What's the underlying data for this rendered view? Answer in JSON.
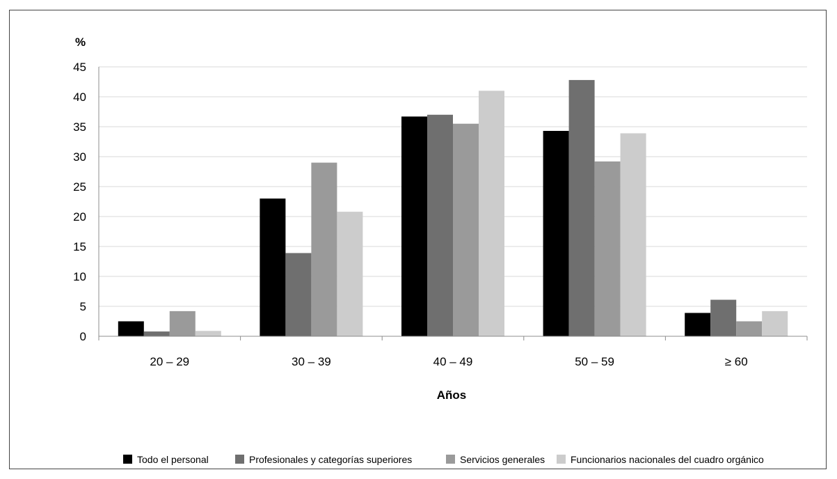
{
  "chart_data": {
    "type": "bar",
    "ylabel": "%",
    "xlabel": "Años",
    "ylim": [
      0,
      45
    ],
    "yticks": [
      0,
      5,
      10,
      15,
      20,
      25,
      30,
      35,
      40,
      45
    ],
    "grid": true,
    "legend_position": "bottom",
    "categories": [
      "20 – 29",
      "30 – 39",
      "40 – 49",
      "50 – 59",
      "≥ 60"
    ],
    "series": [
      {
        "name": "Todo el personal",
        "color": "#000000",
        "values": [
          2.5,
          23,
          36.7,
          34.3,
          3.9
        ]
      },
      {
        "name": "Profesionales y categorías superiores",
        "color": "#6f6f6f",
        "values": [
          0.8,
          13.9,
          37,
          42.8,
          6.1
        ]
      },
      {
        "name": "Servicios generales",
        "color": "#9a9a9a",
        "values": [
          4.2,
          29,
          35.5,
          29.2,
          2.5
        ]
      },
      {
        "name": "Funcionarios nacionales del cuadro orgánico",
        "color": "#cccccc",
        "values": [
          0.9,
          20.8,
          41,
          33.9,
          4.2
        ]
      }
    ]
  }
}
